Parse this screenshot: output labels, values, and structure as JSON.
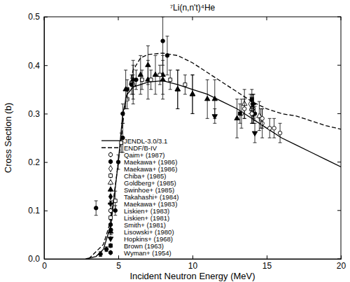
{
  "chart_data": {
    "type": "line",
    "title": "⁷Li(n,n't)⁴He",
    "x_label": "Incident Neutron Energy (MeV)",
    "y_label": "Cross Section (b)",
    "xlim": [
      0,
      20
    ],
    "xticks": [
      0,
      5,
      10,
      15,
      20
    ],
    "ylim": [
      0,
      0.5
    ],
    "yticks": [
      {
        "value": 0,
        "label": "0.0"
      },
      0.1,
      0.2,
      0.3,
      0.4,
      0.5
    ],
    "grid": false,
    "legend": "lower center",
    "series": [
      {
        "name": "JENDL-3.0/3.1",
        "type": "line",
        "line_style": "solid",
        "color": "#000000",
        "x": [
          2.8,
          3.5,
          4,
          4.5,
          5,
          5.3,
          5.6,
          6,
          7,
          8,
          9,
          10,
          11,
          12,
          13,
          14,
          15,
          16,
          17,
          18,
          19,
          20
        ],
        "values": [
          0,
          0.005,
          0.02,
          0.07,
          0.2,
          0.3,
          0.34,
          0.355,
          0.365,
          0.368,
          0.36,
          0.35,
          0.34,
          0.325,
          0.31,
          0.29,
          0.27,
          0.25,
          0.235,
          0.22,
          0.205,
          0.19
        ]
      },
      {
        "name": "ENDF/B-IV",
        "type": "line",
        "line_style": "dashed",
        "color": "#000000",
        "x": [
          3,
          4,
          4.5,
          5,
          5.5,
          6,
          6.5,
          7,
          8,
          9,
          10,
          11,
          12,
          13,
          14,
          15,
          16,
          17,
          18,
          19,
          20
        ],
        "values": [
          0,
          0.03,
          0.08,
          0.2,
          0.33,
          0.39,
          0.415,
          0.422,
          0.425,
          0.42,
          0.405,
          0.385,
          0.365,
          0.345,
          0.325,
          0.31,
          0.3,
          0.295,
          0.285,
          0.275,
          0.268
        ]
      },
      {
        "name": "Qaim+ (1987)",
        "type": "scatter",
        "marker": "circle-open",
        "color": "#000000",
        "x": [
          13.3,
          14.1,
          14.7,
          15.2,
          15.9
        ],
        "values": [
          0.3,
          0.31,
          0.28,
          0.27,
          0.26
        ],
        "errors": [
          0.03,
          0.03,
          0.03,
          0.02,
          0.02
        ]
      },
      {
        "name": "Maekawa+ (1986)",
        "type": "scatter",
        "marker": "circle",
        "color": "#000000",
        "x": [
          14.0,
          14.2
        ],
        "values": [
          0.31,
          0.3
        ],
        "errors": [
          0.015,
          0.015
        ]
      },
      {
        "name": "Maekawa+ (1986)",
        "type": "scatter",
        "marker": "diamond-open",
        "color": "#000000",
        "x": [
          13.9,
          14.6
        ],
        "values": [
          0.32,
          0.29
        ],
        "errors": [
          0.02,
          0.02
        ]
      },
      {
        "name": "Chiba+ (1985)",
        "type": "scatter",
        "marker": "square-open",
        "color": "#000000",
        "x": [
          14.1
        ],
        "values": [
          0.305
        ],
        "errors": [
          0.015
        ]
      },
      {
        "name": "Goldberg+ (1985)",
        "type": "scatter",
        "marker": "triangle-open",
        "color": "#000000",
        "x": [
          13.5,
          14.0,
          14.5
        ],
        "values": [
          0.32,
          0.31,
          0.295
        ],
        "errors": [
          0.03,
          0.03,
          0.03
        ]
      },
      {
        "name": "Swinhoe+ (1985)",
        "type": "scatter",
        "marker": "triangle",
        "color": "#000000",
        "x": [
          6.0,
          7.0,
          8.0,
          9.0,
          10.0,
          11.5,
          13.0
        ],
        "values": [
          0.36,
          0.37,
          0.38,
          0.35,
          0.34,
          0.33,
          0.29
        ],
        "errors": [
          0.04,
          0.04,
          0.04,
          0.04,
          0.04,
          0.04,
          0.04
        ]
      },
      {
        "name": "Takahashi+ (1984)",
        "type": "scatter",
        "marker": "diamond",
        "color": "#000000",
        "x": [
          14.1
        ],
        "values": [
          0.3
        ],
        "errors": [
          0.02
        ]
      },
      {
        "name": "Maekawa+ (1983)",
        "type": "scatter",
        "marker": "cross",
        "color": "#000000",
        "x": [
          14.1
        ],
        "values": [
          0.32
        ],
        "errors": [
          0.02
        ]
      },
      {
        "name": "Liskien+ (1983)",
        "type": "scatter",
        "marker": "circle-open",
        "color": "#000000",
        "x": [
          13.5,
          14.0,
          14.7,
          15.5
        ],
        "values": [
          0.31,
          0.3,
          0.29,
          0.27
        ],
        "errors": [
          0.02,
          0.02,
          0.02,
          0.02
        ]
      },
      {
        "name": "Liskien+ (1981)",
        "type": "scatter",
        "marker": "square-open",
        "color": "#000000",
        "x": [
          4.8,
          5.2,
          5.6,
          6.0,
          6.6,
          7.2,
          7.8,
          8.5,
          9.5
        ],
        "values": [
          0.12,
          0.24,
          0.33,
          0.36,
          0.37,
          0.37,
          0.38,
          0.37,
          0.36
        ],
        "errors": [
          0.02,
          0.02,
          0.02,
          0.02,
          0.02,
          0.02,
          0.02,
          0.02,
          0.02
        ]
      },
      {
        "name": "Smith+ (1981)",
        "type": "scatter",
        "marker": "circle",
        "color": "#000000",
        "x": [
          3.8,
          4.2,
          4.5,
          4.8,
          5.0,
          5.3,
          5.6,
          5.9,
          6.2
        ],
        "values": [
          0.01,
          0.02,
          0.06,
          0.1,
          0.2,
          0.3,
          0.35,
          0.36,
          0.37
        ],
        "errors": [
          0.005,
          0.005,
          0.01,
          0.01,
          0.015,
          0.02,
          0.02,
          0.02,
          0.02
        ]
      },
      {
        "name": "Lisowski+ (1980)",
        "type": "scatter",
        "marker": "triangle",
        "color": "#000000",
        "x": [
          5.5,
          6,
          6.5,
          7,
          7.5,
          8,
          9,
          10,
          11
        ],
        "values": [
          0.35,
          0.37,
          0.38,
          0.4,
          0.38,
          0.37,
          0.35,
          0.34,
          0.33
        ],
        "errors": [
          0.04,
          0.04,
          0.04,
          0.04,
          0.04,
          0.04,
          0.04,
          0.04,
          0.04
        ]
      },
      {
        "name": "Hopkins+ (1968)",
        "type": "scatter",
        "marker": "triangle-down",
        "color": "#000000",
        "x": [
          11.5,
          14.2
        ],
        "values": [
          0.295,
          0.26
        ],
        "errors": [
          0.015,
          0.02
        ]
      },
      {
        "name": "Brown (1963)",
        "type": "scatter",
        "marker": "square",
        "color": "#000000",
        "x": [
          13.2,
          14.0
        ],
        "values": [
          0.3,
          0.33
        ],
        "errors": [
          0.02,
          0.02
        ]
      },
      {
        "name": "Wyman+ (1954)",
        "type": "scatter",
        "marker": "circle",
        "color": "#000000",
        "x": [
          3.5,
          4.5,
          5.3,
          8.0,
          8.3
        ],
        "values": [
          0.105,
          0.1,
          0.25,
          0.45,
          0.42
        ],
        "errors": [
          0.015,
          0.02,
          0.03,
          0.05,
          0.04
        ]
      }
    ]
  }
}
